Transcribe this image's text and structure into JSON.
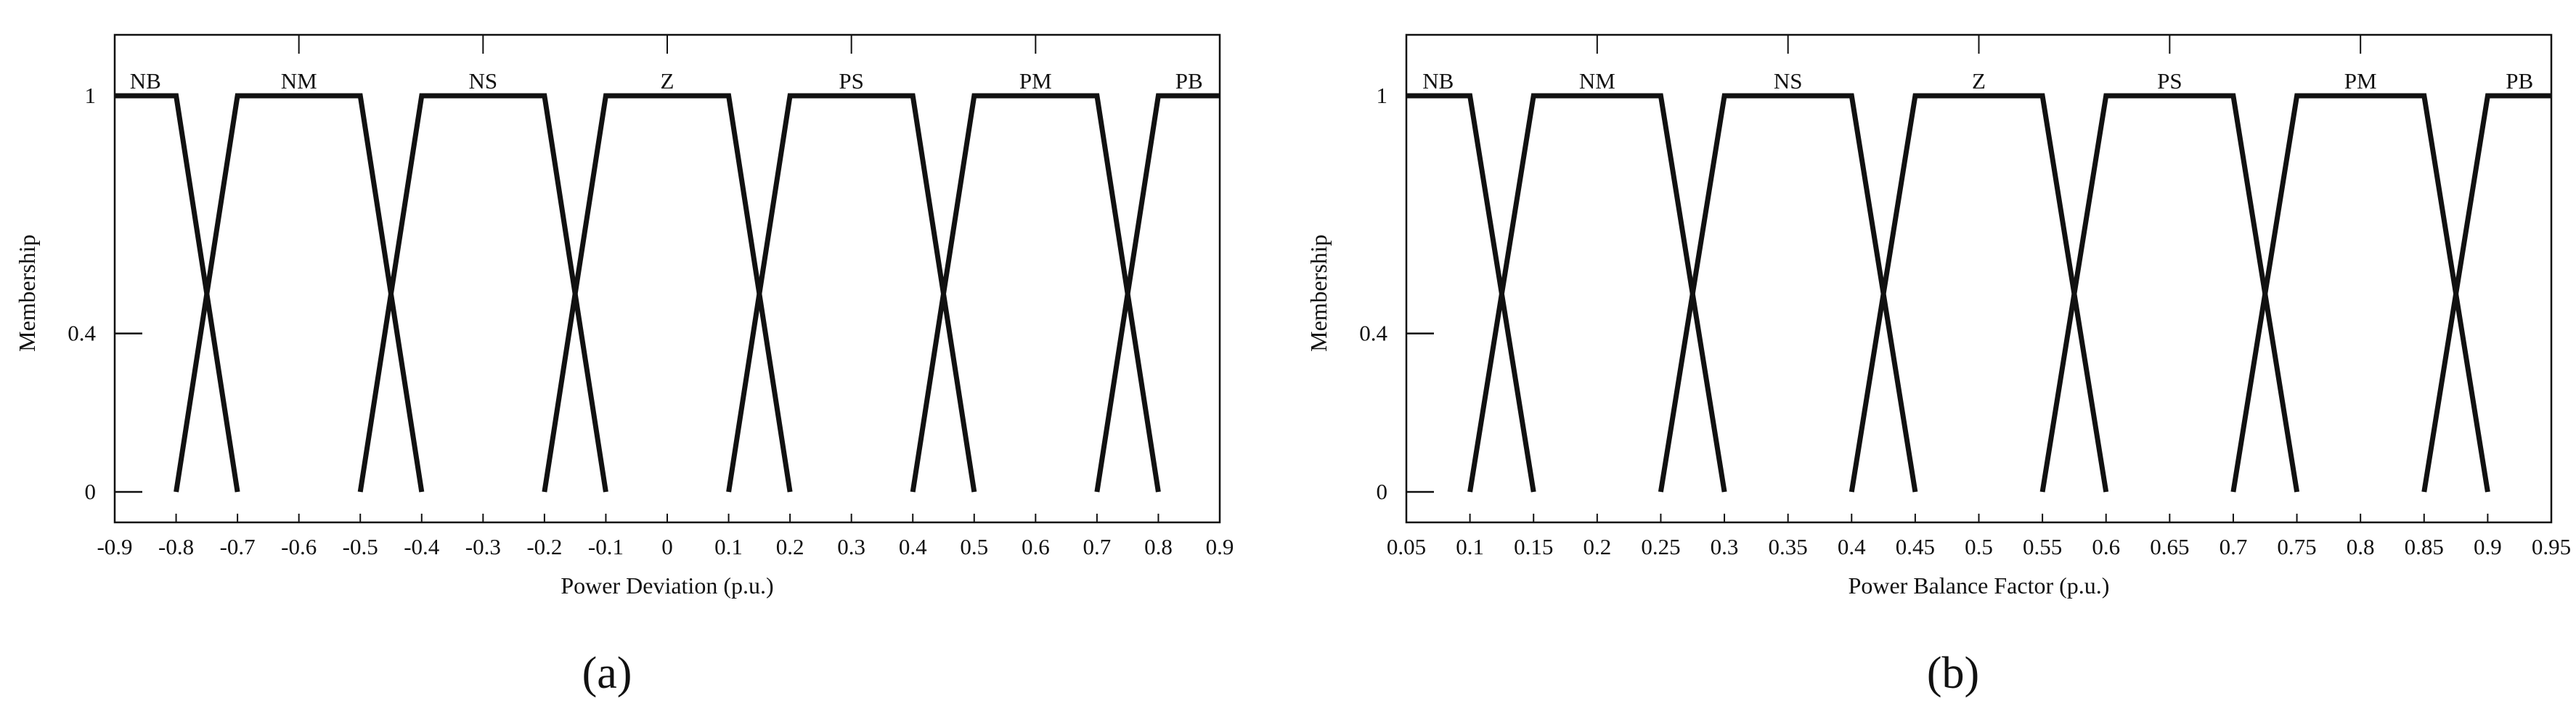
{
  "chart_data": [
    {
      "type": "line",
      "panel_label": "(a)",
      "xlabel": "Power Deviation (p.u.)",
      "ylabel": "Membership",
      "xlim": [
        -0.9,
        0.9
      ],
      "ylim": [
        0,
        1
      ],
      "x_ticks": [
        -0.9,
        -0.8,
        -0.7,
        -0.6,
        -0.5,
        -0.4,
        -0.3,
        -0.2,
        -0.1,
        0,
        0.1,
        0.2,
        0.3,
        0.4,
        0.5,
        0.6,
        0.7,
        0.8,
        0.9
      ],
      "x_tick_labels": [
        "-0.9",
        "-0.8",
        "-0.7",
        "-0.6",
        "-0.5",
        "-0.4",
        "-0.3",
        "-0.2",
        "-0.1",
        "0",
        "0.1",
        "0.2",
        "0.3",
        "0.4",
        "0.5",
        "0.6",
        "0.7",
        "0.8",
        "0.9"
      ],
      "y_ticks": [
        0,
        0.4,
        1
      ],
      "y_tick_labels": [
        "0",
        "0.4",
        "1"
      ],
      "top_ticks": [
        -0.6,
        -0.3,
        0,
        0.3,
        0.6
      ],
      "grid": false,
      "legend": "labels above curves",
      "series": [
        {
          "name": "NB",
          "x": [
            -0.9,
            -0.8,
            -0.7
          ],
          "y": [
            1,
            1,
            0
          ]
        },
        {
          "name": "NM",
          "x": [
            -0.8,
            -0.7,
            -0.5,
            -0.4
          ],
          "y": [
            0,
            1,
            1,
            0
          ]
        },
        {
          "name": "NS",
          "x": [
            -0.5,
            -0.4,
            -0.2,
            -0.1
          ],
          "y": [
            0,
            1,
            1,
            0
          ]
        },
        {
          "name": "Z",
          "x": [
            -0.2,
            -0.1,
            0.1,
            0.2
          ],
          "y": [
            0,
            1,
            1,
            0
          ]
        },
        {
          "name": "PS",
          "x": [
            0.1,
            0.2,
            0.4,
            0.5
          ],
          "y": [
            0,
            1,
            1,
            0
          ]
        },
        {
          "name": "PM",
          "x": [
            0.4,
            0.5,
            0.7,
            0.8
          ],
          "y": [
            0,
            1,
            1,
            0
          ]
        },
        {
          "name": "PB",
          "x": [
            0.7,
            0.8,
            0.9
          ],
          "y": [
            0,
            1,
            1
          ]
        }
      ],
      "label_positions": [
        -0.85,
        -0.6,
        -0.3,
        0,
        0.3,
        0.6,
        0.85
      ]
    },
    {
      "type": "line",
      "panel_label": "(b)",
      "xlabel": "Power Balance Factor (p.u.)",
      "ylabel": "Membership",
      "xlim": [
        0.05,
        0.95
      ],
      "ylim": [
        0,
        1
      ],
      "x_ticks": [
        0.05,
        0.1,
        0.15,
        0.2,
        0.25,
        0.3,
        0.35,
        0.4,
        0.45,
        0.5,
        0.55,
        0.6,
        0.65,
        0.7,
        0.75,
        0.8,
        0.85,
        0.9,
        0.95
      ],
      "x_tick_labels": [
        "0.05",
        "0.1",
        "0.15",
        "0.2",
        "0.25",
        "0.3",
        "0.35",
        "0.4",
        "0.45",
        "0.5",
        "0.55",
        "0.6",
        "0.65",
        "0.7",
        "0.75",
        "0.8",
        "0.85",
        "0.9",
        "0.95"
      ],
      "y_ticks": [
        0,
        0.4,
        1
      ],
      "y_tick_labels": [
        "0",
        "0.4",
        "1"
      ],
      "top_ticks": [
        0.2,
        0.35,
        0.5,
        0.65,
        0.8
      ],
      "grid": false,
      "legend": "labels above curves",
      "series": [
        {
          "name": "NB",
          "x": [
            0.05,
            0.1,
            0.15
          ],
          "y": [
            1,
            1,
            0
          ]
        },
        {
          "name": "NM",
          "x": [
            0.1,
            0.15,
            0.25,
            0.3
          ],
          "y": [
            0,
            1,
            1,
            0
          ]
        },
        {
          "name": "NS",
          "x": [
            0.25,
            0.3,
            0.4,
            0.45
          ],
          "y": [
            0,
            1,
            1,
            0
          ]
        },
        {
          "name": "Z",
          "x": [
            0.4,
            0.45,
            0.55,
            0.6
          ],
          "y": [
            0,
            1,
            1,
            0
          ]
        },
        {
          "name": "PS",
          "x": [
            0.55,
            0.6,
            0.7,
            0.75
          ],
          "y": [
            0,
            1,
            1,
            0
          ]
        },
        {
          "name": "PM",
          "x": [
            0.7,
            0.75,
            0.85,
            0.9
          ],
          "y": [
            0,
            1,
            1,
            0
          ]
        },
        {
          "name": "PB",
          "x": [
            0.85,
            0.9,
            0.95
          ],
          "y": [
            0,
            1,
            1
          ]
        }
      ],
      "label_positions": [
        0.075,
        0.2,
        0.35,
        0.5,
        0.65,
        0.8,
        0.925
      ]
    }
  ]
}
